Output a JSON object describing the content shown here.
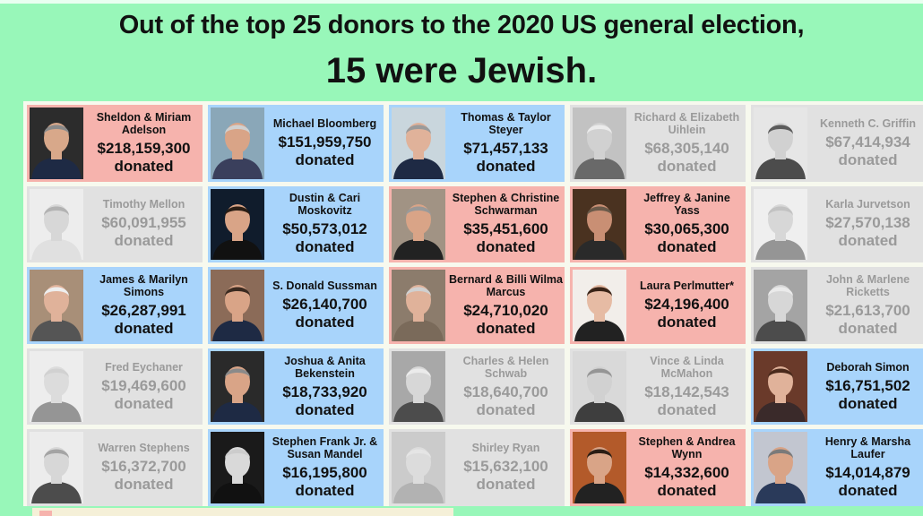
{
  "title": {
    "line1": "Out of the top 25 donors to the 2020 US general election,",
    "line2": "15 were Jewish."
  },
  "donors": [
    {
      "name": "Sheldon & Miriam Adelson",
      "amount": "$218,159,300",
      "label": "donated",
      "color": "red",
      "skin": "#d8a88a",
      "hair": "#8a8a8a",
      "bg": "#2c2c2c",
      "shirt": "#1e2a44"
    },
    {
      "name": "Michael Bloomberg",
      "amount": "$151,959,750",
      "label": "donated",
      "color": "blue",
      "skin": "#d9a487",
      "hair": "#d0d0d0",
      "bg": "#8aa7b8",
      "shirt": "#3a3f5c"
    },
    {
      "name": "Thomas & Taylor Steyer",
      "amount": "$71,457,133",
      "label": "donated",
      "color": "blue",
      "skin": "#e0b29a",
      "hair": "#9a9a9a",
      "bg": "#c9d6dd",
      "shirt": "#1e2a44"
    },
    {
      "name": "Richard & Elizabeth Uihlein",
      "amount": "$68,305,140",
      "label": "donated",
      "color": "gray",
      "skin": "#cfcfcf",
      "hair": "#ededed",
      "bg": "#bdbdbd",
      "shirt": "#555"
    },
    {
      "name": "Kenneth C. Griffin",
      "amount": "$67,414,934",
      "label": "donated",
      "color": "gray",
      "skin": "#cfcfcf",
      "hair": "#444",
      "bg": "#e8e8e8",
      "shirt": "#333"
    },
    {
      "name": "Timothy Mellon",
      "amount": "$60,091,955",
      "label": "donated",
      "color": "gray",
      "skin": "#d6d6d6",
      "hair": "#aaa",
      "bg": "#f0f0f0",
      "shirt": "#e0e0e0"
    },
    {
      "name": "Dustin & Cari Moskovitz",
      "amount": "$50,573,012",
      "label": "donated",
      "color": "blue",
      "skin": "#d9a487",
      "hair": "#2a1d14",
      "bg": "#101c2c",
      "shirt": "#111"
    },
    {
      "name": "Stephen & Christine Schwarman",
      "amount": "$35,451,600",
      "label": "donated",
      "color": "red",
      "skin": "#d9a487",
      "hair": "#9a9a9a",
      "bg": "#a19384",
      "shirt": "#222"
    },
    {
      "name": "Jeffrey & Janine Yass",
      "amount": "$30,065,300",
      "label": "donated",
      "color": "red",
      "skin": "#c98f74",
      "hair": "#6a5a4a",
      "bg": "#4a3220",
      "shirt": "#2a2a2a"
    },
    {
      "name": "Karla Jurvetson",
      "amount": "$27,570,138",
      "label": "donated",
      "color": "gray",
      "skin": "#d6d6d6",
      "hair": "#bdbdbd",
      "bg": "#f2f2f2",
      "shirt": "#888"
    },
    {
      "name": "James & Marilyn Simons",
      "amount": "$26,287,991",
      "label": "donated",
      "color": "blue",
      "skin": "#e0b29a",
      "hair": "#eeeeee",
      "bg": "#a88f78",
      "shirt": "#555"
    },
    {
      "name": "S. Donald Sussman",
      "amount": "$26,140,700",
      "label": "donated",
      "color": "blue",
      "skin": "#d9a487",
      "hair": "#3a2a20",
      "bg": "#8b6b58",
      "shirt": "#1e2a44"
    },
    {
      "name": "Bernard & Billi Wilma Marcus",
      "amount": "$24,710,020",
      "label": "donated",
      "color": "red",
      "skin": "#e0b29a",
      "hair": "#d0d0d0",
      "bg": "#8c7c6c",
      "shirt": "#7a6a5a"
    },
    {
      "name": "Laura Perlmutter*",
      "amount": "$24,196,400",
      "label": "donated",
      "color": "red",
      "skin": "#e6bba4",
      "hair": "#3a2418",
      "bg": "#f2eeea",
      "shirt": "#222"
    },
    {
      "name": "John & Marlene Ricketts",
      "amount": "$21,613,700",
      "label": "donated",
      "color": "gray",
      "skin": "#d6d6d6",
      "hair": "#ececec",
      "bg": "#9a9a9a",
      "shirt": "#333"
    },
    {
      "name": "Fred Eychaner",
      "amount": "$19,469,600",
      "label": "donated",
      "color": "gray",
      "skin": "#dcdcdc",
      "hair": "#cfcfcf",
      "bg": "#f0f0f0",
      "shirt": "#888"
    },
    {
      "name": "Joshua & Anita Bekenstein",
      "amount": "$18,733,920",
      "label": "donated",
      "color": "blue",
      "skin": "#d9a487",
      "hair": "#8a8a8a",
      "bg": "#2a2a2a",
      "shirt": "#1e2a44"
    },
    {
      "name": "Charles & Helen Schwab",
      "amount": "$18,640,700",
      "label": "donated",
      "color": "gray",
      "skin": "#d6d6d6",
      "hair": "#ededed",
      "bg": "#9f9f9f",
      "shirt": "#333"
    },
    {
      "name": "Vince & Linda McMahon",
      "amount": "$18,142,543",
      "label": "donated",
      "color": "gray",
      "skin": "#cfcfcf",
      "hair": "#888",
      "bg": "#d8d8d8",
      "shirt": "#222"
    },
    {
      "name": "Deborah Simon",
      "amount": "$16,751,502",
      "label": "donated",
      "color": "blue",
      "skin": "#e0b29a",
      "hair": "#4a2a1c",
      "bg": "#6a3a2a",
      "shirt": "#3a2a2a"
    },
    {
      "name": "Warren Stephens",
      "amount": "$16,372,700",
      "label": "donated",
      "color": "gray",
      "skin": "#d6d6d6",
      "hair": "#9a9a9a",
      "bg": "#eeeeee",
      "shirt": "#333"
    },
    {
      "name": "Stephen Frank Jr. & Susan Mandel",
      "amount": "$16,195,800",
      "label": "donated",
      "color": "blue",
      "skin": "#d9d9d9",
      "hair": "#cccccc",
      "bg": "#1a1a1a",
      "shirt": "#111"
    },
    {
      "name": "Shirley Ryan",
      "amount": "$15,632,100",
      "label": "donated",
      "color": "gray",
      "skin": "#dcdcdc",
      "hair": "#e6e6e6",
      "bg": "#c8c8c8",
      "shirt": "#aaa"
    },
    {
      "name": "Stephen & Andrea Wynn",
      "amount": "$14,332,600",
      "label": "donated",
      "color": "red",
      "skin": "#d9a487",
      "hair": "#2a1d14",
      "bg": "#b35a2a",
      "shirt": "#222"
    },
    {
      "name": "Henry & Marsha Laufer",
      "amount": "$14,014,879",
      "label": "donated",
      "color": "blue",
      "skin": "#d9a487",
      "hair": "#7a7a7a",
      "bg": "#c2c6d0",
      "shirt": "#2a3a5a"
    }
  ]
}
